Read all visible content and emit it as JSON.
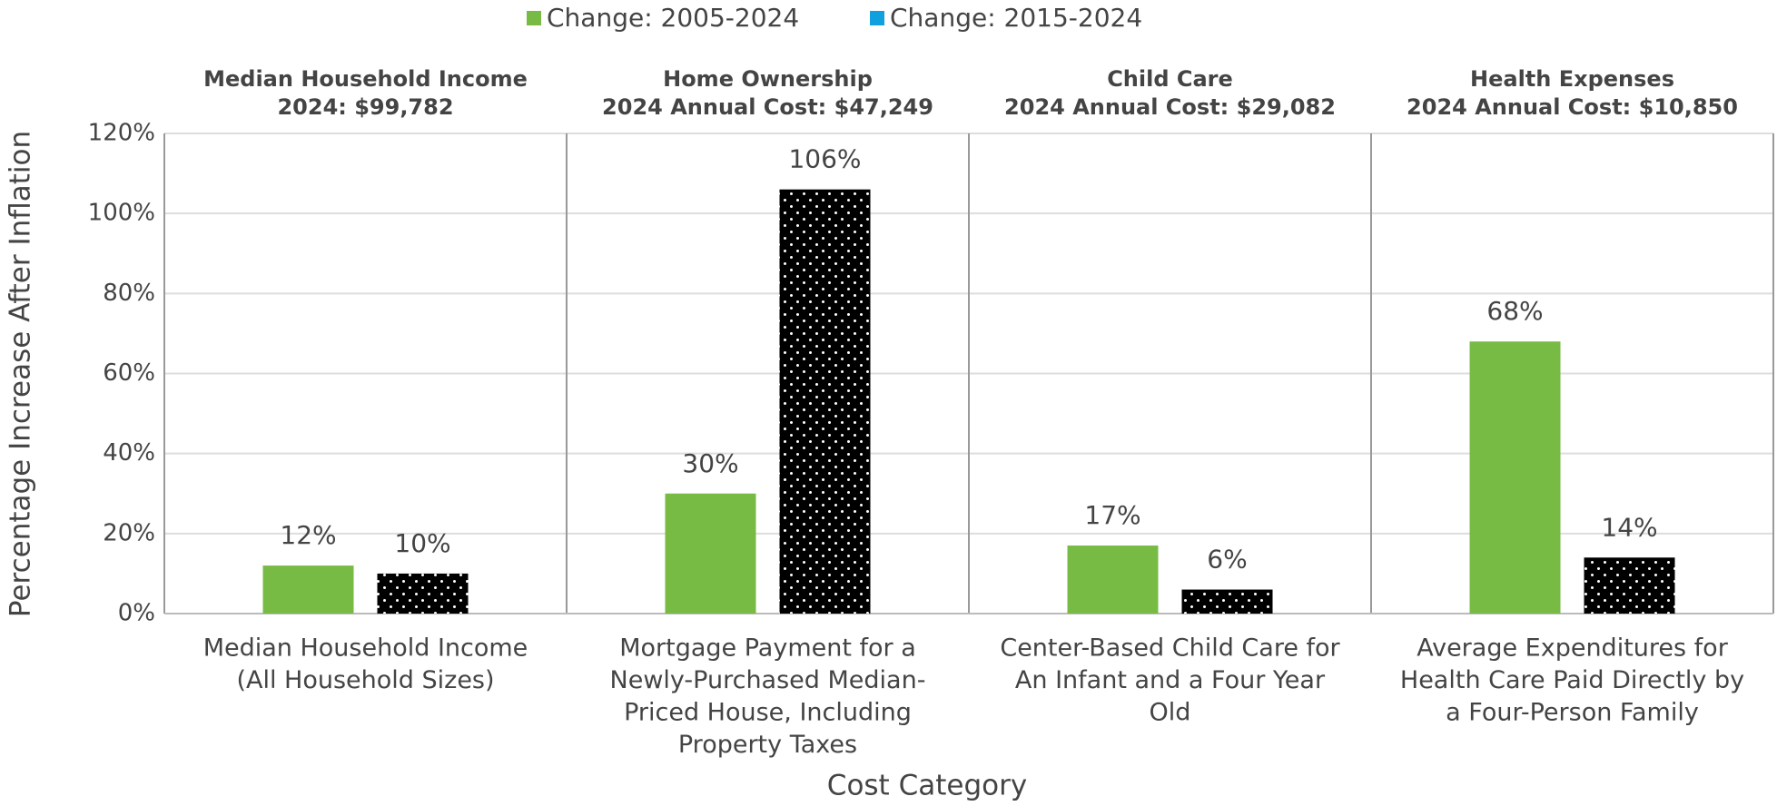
{
  "chart_data": {
    "type": "bar",
    "ylabel": "Percentage Increase After Inflation",
    "xlabel": "Cost Category",
    "panel_headers": [
      {
        "title": "Median Household Income",
        "subtitle": "2024: $99,782"
      },
      {
        "title": "Home Ownership",
        "subtitle": "2024 Annual Cost: $47,249"
      },
      {
        "title": "Child Care",
        "subtitle": "2024 Annual Cost: $29,082"
      },
      {
        "title": "Health Expenses",
        "subtitle": "2024 Annual Cost: $10,850"
      }
    ],
    "categories": [
      [
        "Median Household Income",
        "(All Household Sizes)"
      ],
      [
        "Mortgage Payment for a",
        "Newly-Purchased Median-",
        "Priced House, Including",
        "Property Taxes"
      ],
      [
        "Center-Based Child Care for",
        "An Infant and a Four Year",
        "Old"
      ],
      [
        "Average Expenditures for",
        "Health Care Paid Directly by",
        "a Four-Person Family"
      ]
    ],
    "series": [
      {
        "name": "Change: 2005-2024",
        "color": "#77bb44",
        "values": [
          12,
          30,
          17,
          68
        ],
        "value_labels": [
          "12%",
          "30%",
          "17%",
          "68%"
        ]
      },
      {
        "name": "Change: 2015-2024",
        "color": "#10a0de",
        "pattern": "dots",
        "values": [
          10,
          106,
          6,
          14
        ],
        "value_labels": [
          "10%",
          "106%",
          "6%",
          "14%"
        ]
      }
    ],
    "ylim": [
      0,
      120
    ],
    "yticks": [
      {
        "value": 0,
        "label": "0%"
      },
      {
        "value": 20,
        "label": "20%"
      },
      {
        "value": 40,
        "label": "40%"
      },
      {
        "value": 60,
        "label": "60%"
      },
      {
        "value": 80,
        "label": "80%"
      },
      {
        "value": 100,
        "label": "100%"
      },
      {
        "value": 120,
        "label": "120%"
      }
    ],
    "grid": true,
    "legend": "top"
  }
}
